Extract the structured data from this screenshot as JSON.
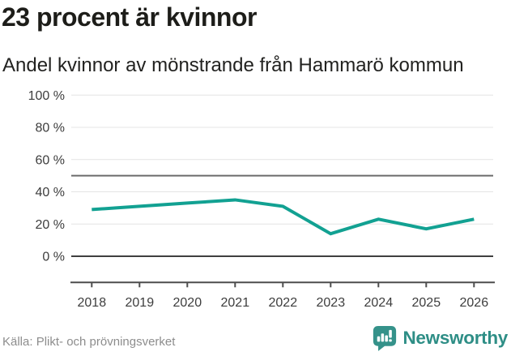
{
  "header": {
    "title": "23 procent är kvinnor",
    "subtitle": "Andel kvinnor av mönstrande från Hammarö kommun"
  },
  "chart_data": {
    "type": "line",
    "title": "23 procent är kvinnor",
    "subtitle": "Andel kvinnor av mönstrande från Hammarö kommun",
    "x": [
      "2018",
      "2019",
      "2020",
      "2021",
      "2022",
      "2023",
      "2024",
      "2025",
      "2026"
    ],
    "series": [
      {
        "name": "Andel kvinnor av mönstrande",
        "unit": "%",
        "values": [
          29,
          31,
          33,
          35,
          31,
          14,
          23,
          17,
          23
        ]
      }
    ],
    "xlabel": "",
    "ylabel": "",
    "ylim": [
      0,
      100
    ],
    "yticks": [
      0,
      20,
      40,
      60,
      80,
      100
    ],
    "ytick_format": "{v} %",
    "reference_line": 50,
    "grid": true,
    "legend_position": "none",
    "line_color": "#12a192"
  },
  "footer": {
    "source": "Källa: Plikt- och prövningsverket",
    "brand": "Newsworthy"
  },
  "colors": {
    "accent": "#12a192",
    "brand_teal": "#35928a",
    "brand_text": "#2e8e86",
    "title_text": "#1d1d19",
    "axis_text": "#3d3d3d",
    "grid": "#e4e4e4",
    "reference_line": "#6b6b6b",
    "zero_line": "#3f3f3f",
    "axis_line": "#4d4d4d",
    "source_text": "#8d8d8d"
  }
}
